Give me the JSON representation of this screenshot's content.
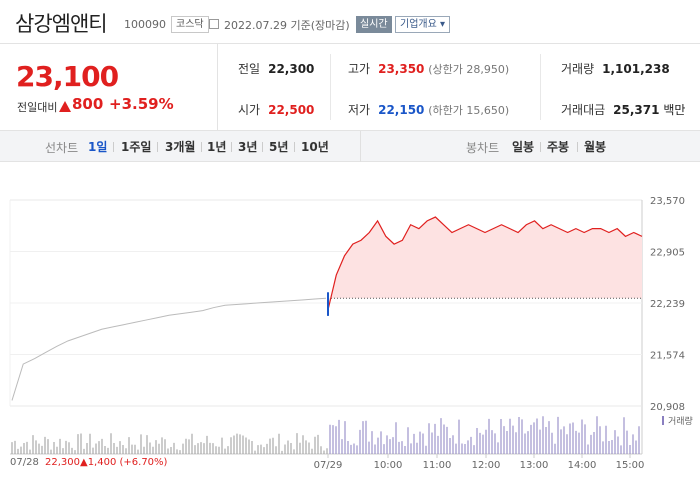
{
  "header": {
    "name": "삼강엠앤티",
    "code": "100090",
    "market": "코스닥",
    "basis": "2022.07.29 기준(장마감)",
    "realtime": "실시간",
    "corp_info": "기업개요"
  },
  "quote": {
    "price": "23,100",
    "diff_label": "전일대비",
    "diff": "800",
    "rate": "+3.59%"
  },
  "stats": {
    "prev_label": "전일",
    "prev": "22,300",
    "high_label": "고가",
    "high": "23,350",
    "upper": "(상한가 28,950)",
    "volume_label": "거래량",
    "volume": "1,101,238",
    "open_label": "시가",
    "open": "22,500",
    "low_label": "저가",
    "low": "22,150",
    "lower": "(하한가 15,650)",
    "amount_label": "거래대금",
    "amount": "25,371",
    "amount_unit": "백만"
  },
  "toolbar": {
    "line_label": "선차트",
    "periods": [
      "1일",
      "1주일",
      "3개월",
      "1년",
      "3년",
      "5년",
      "10년"
    ],
    "candle_label": "봉차트",
    "candles": [
      "일봉",
      "주봉",
      "월봉"
    ]
  },
  "footer": {
    "prev_date": "07/28",
    "prev_price": "22,300",
    "prev_change": "▲1,400 (+6.70%)"
  },
  "chart_data": {
    "type": "line",
    "y_ticks": [
      "23,570",
      "22,905",
      "22,239",
      "21,574",
      "20,908"
    ],
    "ylim": [
      20908,
      23570
    ],
    "x_ticks": [
      "07/29",
      "10:00",
      "11:00",
      "12:00",
      "13:00",
      "14:00",
      "15:00"
    ],
    "baseline": 22300,
    "volume_label": "거래량",
    "series": [
      {
        "name": "07/28",
        "color": "#bbbbbb",
        "values": [
          20980,
          21450,
          21520,
          21600,
          21680,
          21750,
          21800,
          21850,
          21900,
          21930,
          21960,
          21990,
          22020,
          22050,
          22080,
          22100,
          22120,
          22140,
          22180,
          22210,
          22220,
          22230,
          22240,
          22250,
          22260,
          22270,
          22280,
          22290,
          22300
        ]
      },
      {
        "name": "07/29",
        "color": "#e0201f",
        "values": [
          22150,
          22600,
          22850,
          23000,
          23050,
          23150,
          23300,
          23100,
          23000,
          23050,
          23250,
          23200,
          23300,
          23350,
          23250,
          23150,
          23200,
          23250,
          23200,
          23150,
          23200,
          23250,
          23200,
          23150,
          23250,
          23300,
          23200,
          23250,
          23200,
          23150,
          23200,
          23150,
          23200,
          23200,
          23150,
          23200,
          23100,
          23150,
          23100
        ]
      }
    ],
    "colors": {
      "up": "#e0201f",
      "down": "#1a56c8",
      "fill": "#fde2e2"
    }
  }
}
